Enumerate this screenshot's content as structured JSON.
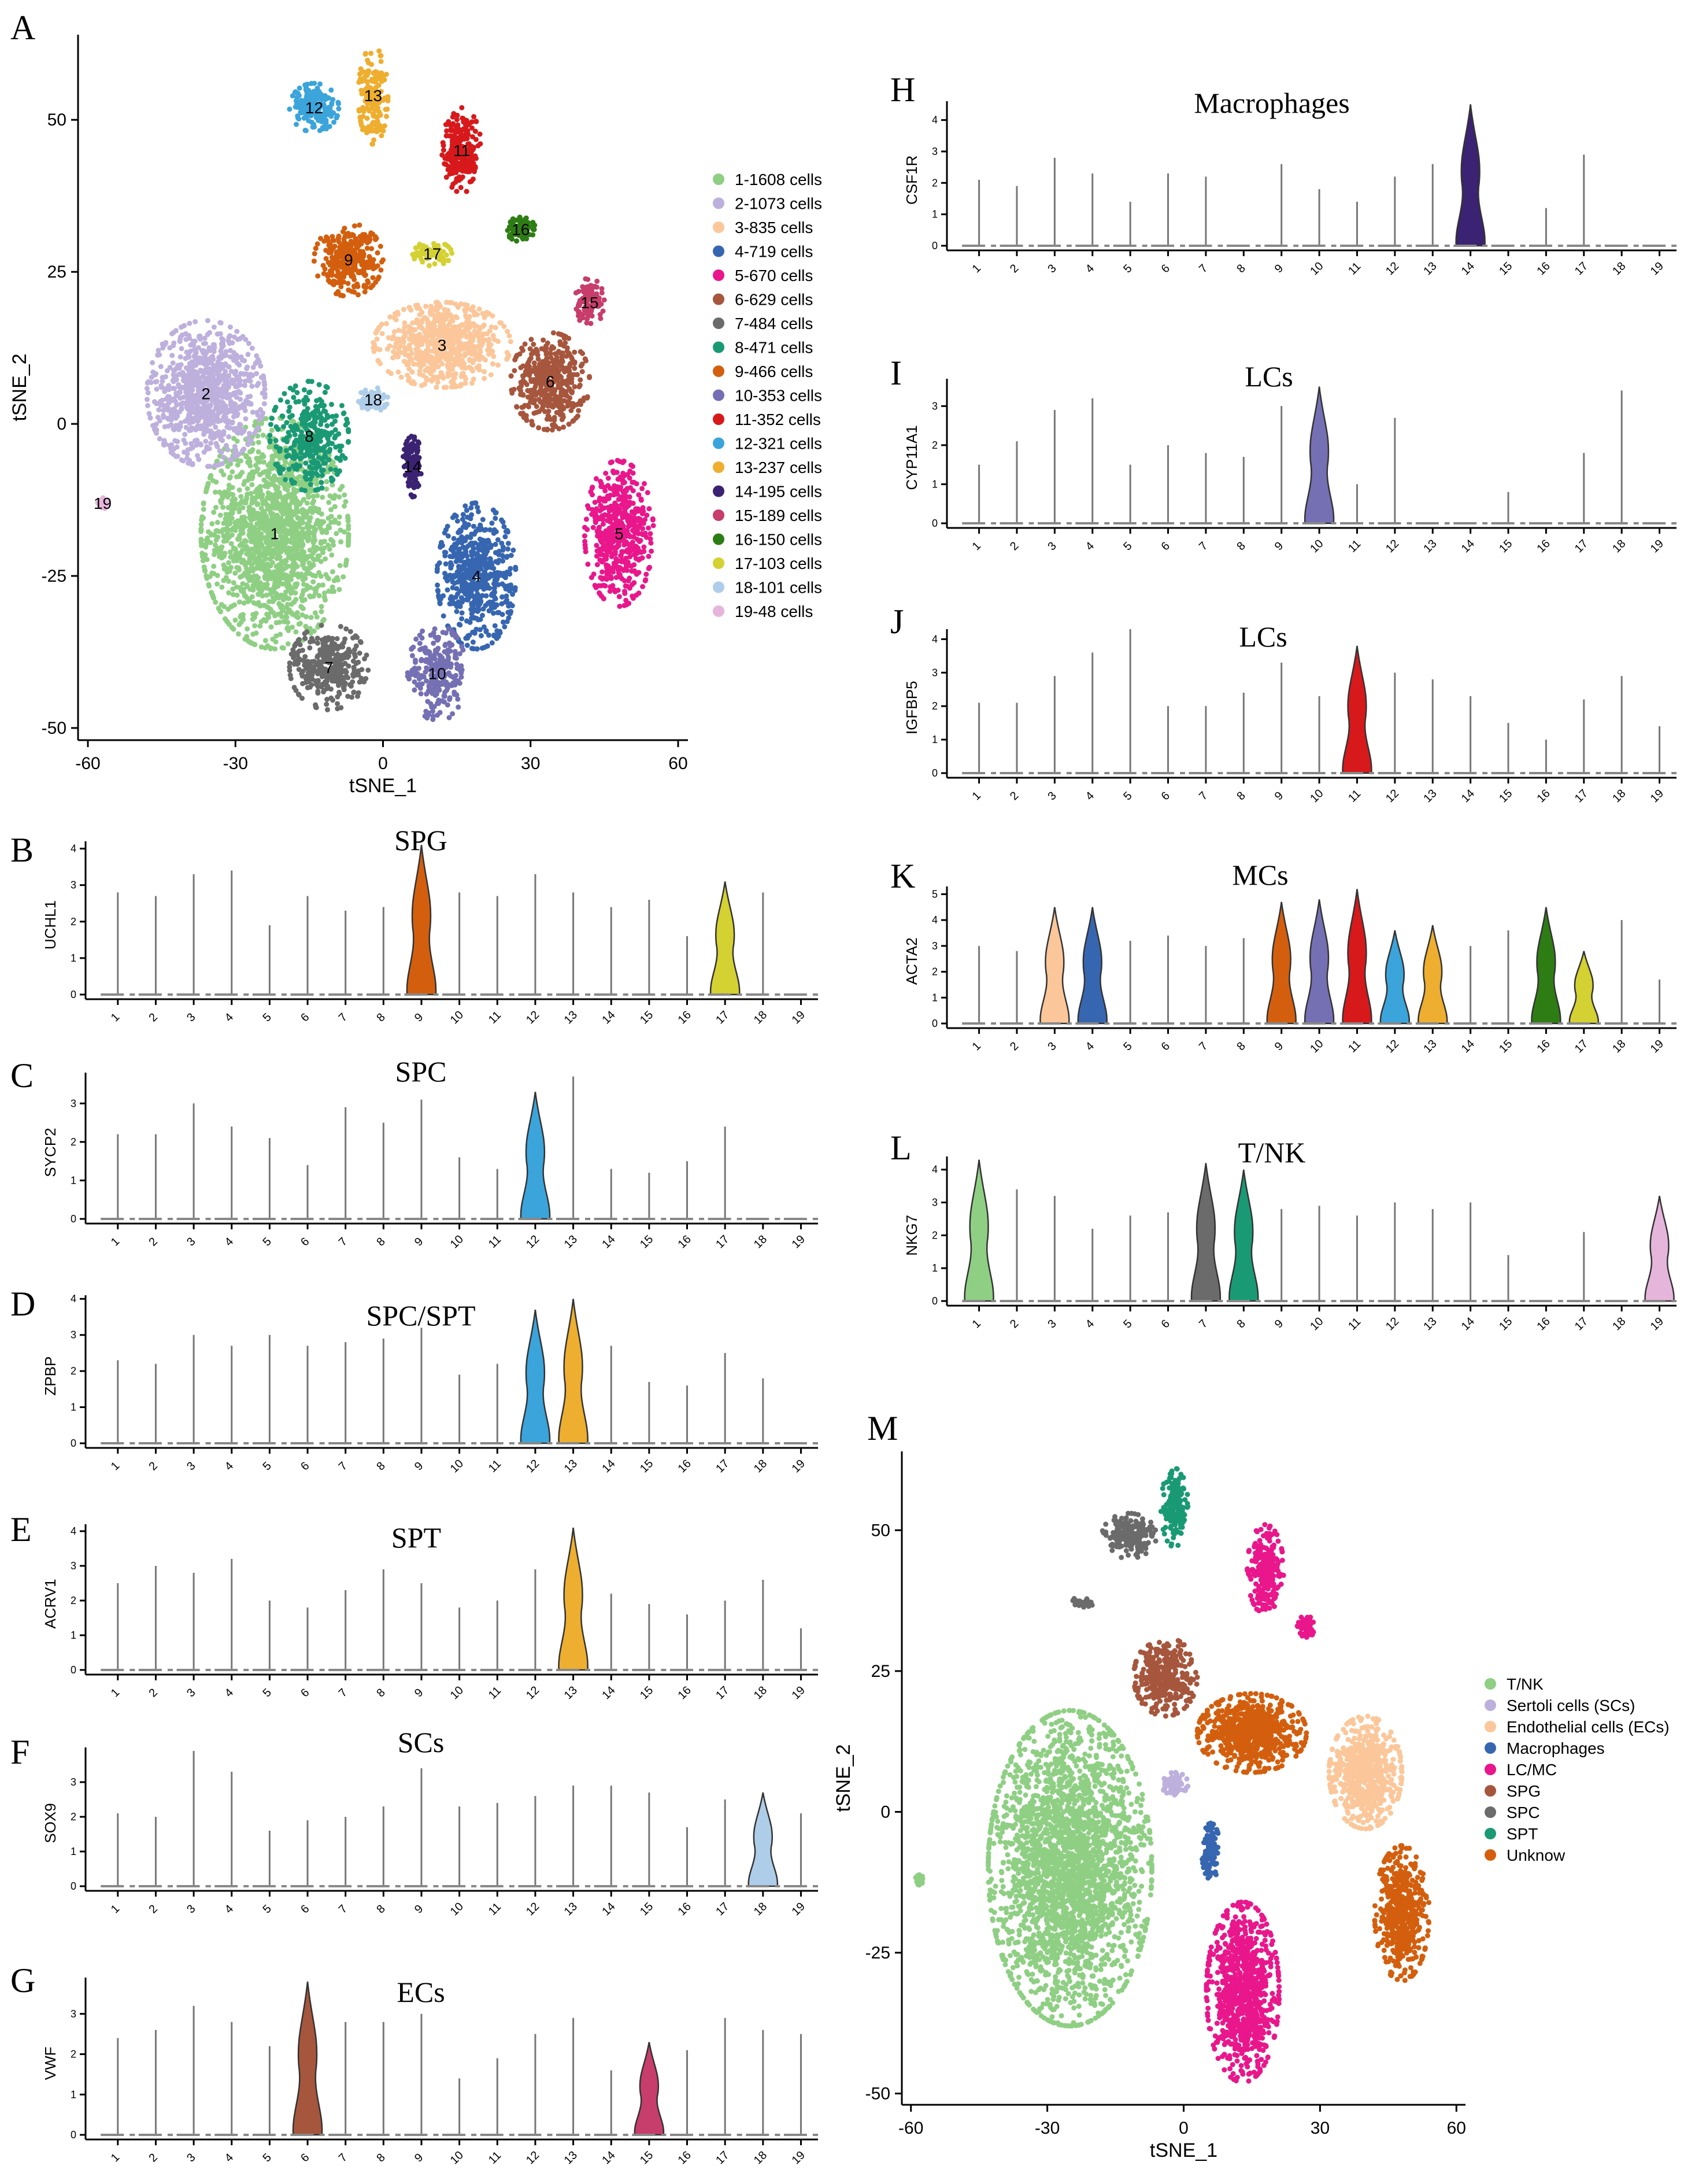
{
  "chart_data": [
    {
      "panel": "A",
      "type": "scatter",
      "title": "",
      "xlabel": "tSNE_1",
      "ylabel": "tSNE_2",
      "xlim": [
        -62,
        62
      ],
      "ylim": [
        -52,
        64
      ],
      "xticks": [
        -60,
        -30,
        0,
        30,
        60
      ],
      "yticks": [
        -50,
        -25,
        0,
        25,
        50
      ],
      "legend": [
        {
          "label": "1-1608  cells",
          "color": "#8fcf84"
        },
        {
          "label": "2-1073  cells",
          "color": "#bdb0dd"
        },
        {
          "label": "3-835  cells",
          "color": "#fbc79a"
        },
        {
          "label": "4-719  cells",
          "color": "#3766b1"
        },
        {
          "label": "5-670  cells",
          "color": "#e9178b"
        },
        {
          "label": "6-629  cells",
          "color": "#a6563d"
        },
        {
          "label": "7-484  cells",
          "color": "#6b6b6b"
        },
        {
          "label": "8-471  cells",
          "color": "#1a9a74"
        },
        {
          "label": "9-466  cells",
          "color": "#d35f0e"
        },
        {
          "label": "10-353  cells",
          "color": "#7570b3"
        },
        {
          "label": "11-352  cells",
          "color": "#d7191c"
        },
        {
          "label": "12-321  cells",
          "color": "#3ba4db"
        },
        {
          "label": "13-237  cells",
          "color": "#eeae2f"
        },
        {
          "label": "14-195  cells",
          "color": "#3b2272"
        },
        {
          "label": "15-189  cells",
          "color": "#c73d6c"
        },
        {
          "label": "16-150  cells",
          "color": "#2e7d14"
        },
        {
          "label": "17-103  cells",
          "color": "#d4d132"
        },
        {
          "label": "18-101  cells",
          "color": "#aecde9"
        },
        {
          "label": "19-48  cells",
          "color": "#e6b5dc"
        }
      ],
      "clusters": [
        {
          "id": "1",
          "cx": -22,
          "cy": -18,
          "rx": 15,
          "ry": 19,
          "n": 1600
        },
        {
          "id": "2",
          "cx": -36,
          "cy": 5,
          "rx": 12,
          "ry": 12,
          "n": 900
        },
        {
          "id": "3",
          "cx": 12,
          "cy": 13,
          "rx": 14,
          "ry": 7,
          "n": 700
        },
        {
          "id": "4",
          "cx": 19,
          "cy": -25,
          "rx": 8,
          "ry": 12,
          "n": 560
        },
        {
          "id": "5",
          "cx": 48,
          "cy": -18,
          "rx": 7,
          "ry": 12,
          "n": 500
        },
        {
          "id": "6",
          "cx": 34,
          "cy": 7,
          "rx": 8,
          "ry": 8,
          "n": 420
        },
        {
          "id": "7",
          "cx": -11,
          "cy": -40,
          "rx": 8,
          "ry": 7,
          "n": 330
        },
        {
          "id": "8",
          "cx": -15,
          "cy": -2,
          "rx": 8,
          "ry": 9,
          "n": 320
        },
        {
          "id": "9",
          "cx": -7,
          "cy": 27,
          "rx": 7,
          "ry": 6,
          "n": 320
        },
        {
          "id": "10",
          "cx": 11,
          "cy": -41,
          "rx": 6,
          "ry": 8,
          "n": 240
        },
        {
          "id": "11",
          "cx": 16,
          "cy": 45,
          "rx": 4,
          "ry": 7,
          "n": 240
        },
        {
          "id": "12",
          "cx": -14,
          "cy": 52,
          "rx": 5,
          "ry": 4,
          "n": 200
        },
        {
          "id": "13",
          "cx": -2,
          "cy": 54,
          "rx": 3,
          "ry": 8,
          "n": 170
        },
        {
          "id": "14",
          "cx": 6,
          "cy": -7,
          "rx": 2,
          "ry": 5,
          "n": 120
        },
        {
          "id": "15",
          "cx": 42,
          "cy": 20,
          "rx": 3,
          "ry": 4,
          "n": 110
        },
        {
          "id": "16",
          "cx": 28,
          "cy": 32,
          "rx": 3,
          "ry": 2,
          "n": 90
        },
        {
          "id": "17",
          "cx": 10,
          "cy": 28,
          "rx": 4,
          "ry": 2,
          "n": 80
        },
        {
          "id": "18",
          "cx": -2,
          "cy": 4,
          "rx": 3,
          "ry": 2,
          "n": 70
        },
        {
          "id": "19",
          "cx": -57,
          "cy": -13,
          "rx": 1,
          "ry": 1,
          "n": 30
        }
      ]
    },
    {
      "panel": "B",
      "type": "violin",
      "title": "SPG",
      "ylabel": "UCHL1",
      "yticks": [
        0,
        1,
        2,
        3,
        4
      ],
      "ymax": 4.2,
      "categories": [
        "1",
        "2",
        "3",
        "4",
        "5",
        "6",
        "7",
        "8",
        "9",
        "10",
        "11",
        "12",
        "13",
        "14",
        "15",
        "16",
        "17",
        "18",
        "19"
      ],
      "max_values": [
        2.8,
        2.7,
        3.3,
        3.4,
        1.9,
        2.7,
        2.3,
        2.4,
        4.1,
        2.8,
        2.7,
        3.3,
        2.8,
        2.4,
        2.6,
        1.6,
        3.1,
        2.8,
        0
      ],
      "highlight": [
        {
          "cluster": "9",
          "color": "#d35f0e"
        },
        {
          "cluster": "17",
          "color": "#d4d132"
        }
      ]
    },
    {
      "panel": "C",
      "type": "violin",
      "title": "SPC",
      "ylabel": "SYCP2",
      "yticks": [
        0,
        1,
        2,
        3
      ],
      "ymax": 3.8,
      "categories": [
        "1",
        "2",
        "3",
        "4",
        "5",
        "6",
        "7",
        "8",
        "9",
        "10",
        "11",
        "12",
        "13",
        "14",
        "15",
        "16",
        "17",
        "18",
        "19"
      ],
      "max_values": [
        2.2,
        2.2,
        3.0,
        2.4,
        2.1,
        1.4,
        2.9,
        2.5,
        3.1,
        1.6,
        1.3,
        3.3,
        3.7,
        1.3,
        1.2,
        1.5,
        2.4,
        0,
        0
      ],
      "highlight": [
        {
          "cluster": "12",
          "color": "#3ba4db"
        }
      ]
    },
    {
      "panel": "D",
      "type": "violin",
      "title": "SPC/SPT",
      "ylabel": "ZPBP",
      "yticks": [
        0,
        1,
        2,
        3,
        4
      ],
      "ymax": 4.1,
      "categories": [
        "1",
        "2",
        "3",
        "4",
        "5",
        "6",
        "7",
        "8",
        "9",
        "10",
        "11",
        "12",
        "13",
        "14",
        "15",
        "16",
        "17",
        "18",
        "19"
      ],
      "max_values": [
        2.3,
        2.2,
        3.0,
        2.7,
        3.0,
        2.7,
        2.8,
        2.9,
        3.2,
        1.9,
        2.2,
        3.7,
        4.0,
        2.7,
        1.7,
        1.6,
        2.5,
        1.8,
        0
      ],
      "highlight": [
        {
          "cluster": "12",
          "color": "#3ba4db"
        },
        {
          "cluster": "13",
          "color": "#eeae2f"
        }
      ]
    },
    {
      "panel": "E",
      "type": "violin",
      "title": "SPT",
      "ylabel": "ACRV1",
      "yticks": [
        0,
        1,
        2,
        3,
        4
      ],
      "ymax": 4.2,
      "categories": [
        "1",
        "2",
        "3",
        "4",
        "5",
        "6",
        "7",
        "8",
        "9",
        "10",
        "11",
        "12",
        "13",
        "14",
        "15",
        "16",
        "17",
        "18",
        "19"
      ],
      "max_values": [
        2.5,
        3.0,
        2.8,
        3.2,
        2.0,
        1.8,
        2.3,
        2.9,
        2.5,
        1.8,
        2.0,
        2.9,
        4.1,
        2.2,
        1.9,
        1.6,
        2.0,
        2.6,
        1.2
      ],
      "highlight": [
        {
          "cluster": "13",
          "color": "#eeae2f"
        }
      ]
    },
    {
      "panel": "F",
      "type": "violin",
      "title": "SCs",
      "ylabel": "SOX9",
      "yticks": [
        0,
        1,
        2,
        3
      ],
      "ymax": 4.0,
      "categories": [
        "1",
        "2",
        "3",
        "4",
        "5",
        "6",
        "7",
        "8",
        "9",
        "10",
        "11",
        "12",
        "13",
        "14",
        "15",
        "16",
        "17",
        "18",
        "19"
      ],
      "max_values": [
        2.1,
        2.0,
        3.9,
        3.3,
        1.6,
        1.9,
        2.0,
        2.3,
        3.4,
        2.3,
        2.4,
        2.6,
        2.9,
        2.9,
        2.7,
        1.7,
        2.5,
        2.7,
        2.1
      ],
      "highlight": [
        {
          "cluster": "18",
          "color": "#aecde9"
        }
      ]
    },
    {
      "panel": "G",
      "type": "violin",
      "title": "ECs",
      "ylabel": "VWF",
      "yticks": [
        0,
        1,
        2,
        3
      ],
      "ymax": 3.9,
      "categories": [
        "1",
        "2",
        "3",
        "4",
        "5",
        "6",
        "7",
        "8",
        "9",
        "10",
        "11",
        "12",
        "13",
        "14",
        "15",
        "16",
        "17",
        "18",
        "19"
      ],
      "max_values": [
        2.4,
        2.6,
        3.2,
        2.8,
        2.2,
        3.8,
        2.8,
        2.8,
        3.0,
        1.4,
        1.9,
        2.5,
        2.9,
        1.6,
        2.3,
        2.1,
        2.9,
        2.6,
        2.5
      ],
      "highlight": [
        {
          "cluster": "6",
          "color": "#a6563d"
        },
        {
          "cluster": "15",
          "color": "#c73d6c"
        }
      ]
    },
    {
      "panel": "H",
      "type": "violin",
      "title": "Macrophages",
      "ylabel": "CSF1R",
      "yticks": [
        0,
        1,
        2,
        3,
        4
      ],
      "ymax": 4.6,
      "categories": [
        "1",
        "2",
        "3",
        "4",
        "5",
        "6",
        "7",
        "8",
        "9",
        "10",
        "11",
        "12",
        "13",
        "14",
        "15",
        "16",
        "17",
        "18",
        "19"
      ],
      "max_values": [
        2.1,
        1.9,
        2.8,
        2.3,
        1.4,
        2.3,
        2.2,
        0,
        2.6,
        1.8,
        1.4,
        2.2,
        2.6,
        4.5,
        0,
        1.2,
        2.9,
        0,
        0
      ],
      "highlight": [
        {
          "cluster": "14",
          "color": "#3b2272"
        }
      ]
    },
    {
      "panel": "I",
      "type": "violin",
      "title": "LCs",
      "ylabel": "CYP11A1",
      "yticks": [
        0,
        1,
        2,
        3
      ],
      "ymax": 3.7,
      "categories": [
        "1",
        "2",
        "3",
        "4",
        "5",
        "6",
        "7",
        "8",
        "9",
        "10",
        "11",
        "12",
        "13",
        "14",
        "15",
        "16",
        "17",
        "18",
        "19"
      ],
      "max_values": [
        1.5,
        2.1,
        2.9,
        3.2,
        1.5,
        2.0,
        1.8,
        1.7,
        3.0,
        3.5,
        1.0,
        2.7,
        0,
        0,
        0.8,
        0,
        1.8,
        3.4,
        0
      ],
      "highlight": [
        {
          "cluster": "10",
          "color": "#7570b3"
        }
      ]
    },
    {
      "panel": "J",
      "type": "violin",
      "title": "LCs",
      "ylabel": "IGFBP5",
      "yticks": [
        0,
        1,
        2,
        3,
        4
      ],
      "ymax": 4.3,
      "categories": [
        "1",
        "2",
        "3",
        "4",
        "5",
        "6",
        "7",
        "8",
        "9",
        "10",
        "11",
        "12",
        "13",
        "14",
        "15",
        "16",
        "17",
        "18",
        "19"
      ],
      "max_values": [
        2.1,
        2.1,
        2.9,
        3.6,
        4.3,
        2.0,
        2.0,
        2.4,
        3.3,
        2.3,
        3.8,
        3.0,
        2.8,
        2.3,
        1.5,
        1.0,
        2.2,
        2.9,
        1.4
      ],
      "highlight": [
        {
          "cluster": "11",
          "color": "#d7191c"
        }
      ]
    },
    {
      "panel": "K",
      "type": "violin",
      "title": "MCs",
      "ylabel": "ACTA2",
      "yticks": [
        0,
        1,
        2,
        3,
        4,
        5
      ],
      "ymax": 5.3,
      "categories": [
        "1",
        "2",
        "3",
        "4",
        "5",
        "6",
        "7",
        "8",
        "9",
        "10",
        "11",
        "12",
        "13",
        "14",
        "15",
        "16",
        "17",
        "18",
        "19"
      ],
      "max_values": [
        3.0,
        2.8,
        4.5,
        4.5,
        3.2,
        3.4,
        3.0,
        3.3,
        4.7,
        4.8,
        5.2,
        3.6,
        3.8,
        3.0,
        3.6,
        4.5,
        2.8,
        4.0,
        1.7
      ],
      "highlight": [
        {
          "cluster": "3",
          "color": "#fbc79a"
        },
        {
          "cluster": "4",
          "color": "#3766b1"
        },
        {
          "cluster": "9",
          "color": "#d35f0e"
        },
        {
          "cluster": "10",
          "color": "#7570b3"
        },
        {
          "cluster": "11",
          "color": "#d7191c"
        },
        {
          "cluster": "12",
          "color": "#3ba4db"
        },
        {
          "cluster": "13",
          "color": "#eeae2f"
        },
        {
          "cluster": "16",
          "color": "#2e7d14"
        },
        {
          "cluster": "17",
          "color": "#d4d132"
        }
      ]
    },
    {
      "panel": "L",
      "type": "violin",
      "title": "T/NK",
      "ylabel": "NKG7",
      "yticks": [
        0,
        1,
        2,
        3,
        4
      ],
      "ymax": 4.4,
      "categories": [
        "1",
        "2",
        "3",
        "4",
        "5",
        "6",
        "7",
        "8",
        "9",
        "10",
        "11",
        "12",
        "13",
        "14",
        "15",
        "16",
        "17",
        "18",
        "19"
      ],
      "max_values": [
        4.3,
        3.4,
        3.2,
        2.2,
        2.6,
        2.7,
        4.2,
        4.0,
        2.8,
        2.9,
        2.6,
        3.0,
        2.8,
        3.0,
        1.4,
        0,
        2.1,
        0,
        3.2
      ],
      "highlight": [
        {
          "cluster": "1",
          "color": "#8fcf84"
        },
        {
          "cluster": "7",
          "color": "#6b6b6b"
        },
        {
          "cluster": "8",
          "color": "#1a9a74"
        },
        {
          "cluster": "19",
          "color": "#e6b5dc"
        }
      ]
    },
    {
      "panel": "M",
      "type": "scatter",
      "title": "",
      "xlabel": "tSNE_1",
      "ylabel": "tSNE_2",
      "xlim": [
        -62,
        62
      ],
      "ylim": [
        -52,
        64
      ],
      "xticks": [
        -60,
        -30,
        0,
        30,
        60
      ],
      "yticks": [
        -50,
        -25,
        0,
        25,
        50
      ],
      "legend": [
        {
          "label": "T/NK",
          "color": "#8fcf84"
        },
        {
          "label": "Sertoli cells (SCs)",
          "color": "#bdb0dd"
        },
        {
          "label": "Endothelial cells (ECs)",
          "color": "#fbc79a"
        },
        {
          "label": "Macrophages",
          "color": "#3766b1"
        },
        {
          "label": "LC/MC",
          "color": "#e9178b"
        },
        {
          "label": "SPG",
          "color": "#a6563d"
        },
        {
          "label": "SPC",
          "color": "#6b6b6b"
        },
        {
          "label": "SPT",
          "color": "#1a9a74"
        },
        {
          "label": "Unknow",
          "color": "#d35f0e"
        }
      ],
      "clusters": [
        {
          "group": "T/NK",
          "cx": -25,
          "cy": -10,
          "rx": 18,
          "ry": 28,
          "n": 2600
        },
        {
          "group": "T/NK",
          "cx": -58,
          "cy": -12,
          "rx": 1,
          "ry": 1,
          "n": 30
        },
        {
          "group": "Sertoli cells (SCs)",
          "cx": -2,
          "cy": 5,
          "rx": 3,
          "ry": 2,
          "n": 70
        },
        {
          "group": "Endothelial cells (ECs)",
          "cx": 40,
          "cy": 7,
          "rx": 8,
          "ry": 10,
          "n": 620
        },
        {
          "group": "Macrophages",
          "cx": 6,
          "cy": -7,
          "rx": 2,
          "ry": 5,
          "n": 120
        },
        {
          "group": "LC/MC",
          "cx": 13,
          "cy": -32,
          "rx": 8,
          "ry": 16,
          "n": 850
        },
        {
          "group": "LC/MC",
          "cx": 18,
          "cy": 43,
          "rx": 4,
          "ry": 8,
          "n": 240
        },
        {
          "group": "LC/MC",
          "cx": 27,
          "cy": 33,
          "rx": 2,
          "ry": 2,
          "n": 60
        },
        {
          "group": "SPG",
          "cx": -4,
          "cy": 24,
          "rx": 7,
          "ry": 7,
          "n": 360
        },
        {
          "group": "SPC",
          "cx": -12,
          "cy": 49,
          "rx": 6,
          "ry": 4,
          "n": 200
        },
        {
          "group": "SPC",
          "cx": -23,
          "cy": 37,
          "rx": 3,
          "ry": 1,
          "n": 30
        },
        {
          "group": "SPT",
          "cx": -2,
          "cy": 54,
          "rx": 3,
          "ry": 7,
          "n": 170
        },
        {
          "group": "Unknow",
          "cx": 15,
          "cy": 14,
          "rx": 12,
          "ry": 7,
          "n": 700
        },
        {
          "group": "Unknow",
          "cx": 48,
          "cy": -18,
          "rx": 6,
          "ry": 12,
          "n": 500
        }
      ]
    }
  ],
  "panels": {
    "letters": [
      "A",
      "B",
      "C",
      "D",
      "E",
      "F",
      "G",
      "H",
      "I",
      "J",
      "K",
      "L",
      "M"
    ]
  }
}
